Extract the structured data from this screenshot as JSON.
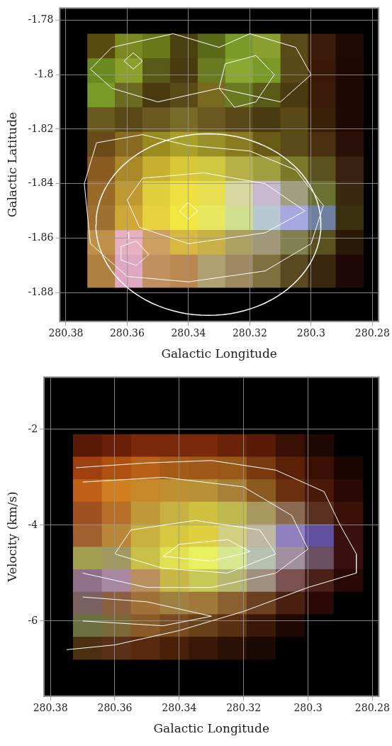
{
  "chart_data": [
    {
      "type": "image",
      "x_label": "Galactic Longitude",
      "y_label": "Galactic Latitude",
      "xlim": [
        280.382,
        280.278
      ],
      "ylim": [
        -1.8905,
        -1.7756
      ],
      "xticks": [
        280.38,
        280.36,
        280.34,
        280.32,
        280.3,
        280.28
      ],
      "yticks": [
        -1.78,
        -1.8,
        -1.82,
        -1.84,
        -1.86,
        -1.88
      ],
      "grid": true,
      "image": {
        "x_edges": [
          280.373,
          280.364,
          280.355,
          280.346,
          280.337,
          280.328,
          280.319,
          280.31,
          280.301,
          280.292,
          280.283
        ],
        "y_edges": [
          -1.785,
          -1.794,
          -1.803,
          -1.812,
          -1.821,
          -1.83,
          -1.839,
          -1.848,
          -1.857,
          -1.866,
          -1.878
        ],
        "colors": [
          [
            "#5a4a10",
            "#7a8a20",
            "#6a7a18",
            "#4a4010",
            "#5a6a18",
            "#7a9a28",
            "#8aa030",
            "#5a4a18",
            "#3a1a08",
            "#200a05"
          ],
          [
            "#6a8a20",
            "#8aa028",
            "#5a5a18",
            "#4a3a10",
            "#6a7a20",
            "#8aa830",
            "#7a9a28",
            "#5a4818",
            "#3a1808",
            "#200805"
          ],
          [
            "#7a9a28",
            "#6a6a20",
            "#4a3a10",
            "#5a4a18",
            "#7a6a20",
            "#6a7a20",
            "#5a5a18",
            "#4a3a10",
            "#3a1a08",
            "#200805"
          ],
          [
            "#6a5a20",
            "#5a4818",
            "#6a5820",
            "#7a6a28",
            "#6a5820",
            "#5a4818",
            "#4a3a12",
            "#5a4818",
            "#3a2008",
            "#200805"
          ],
          [
            "#6a4a18",
            "#8a6a20",
            "#9a8a20",
            "#aaa028",
            "#9a9028",
            "#8a7a20",
            "#6a5a18",
            "#5a4a18",
            "#4a3010",
            "#2a1008"
          ],
          [
            "#8a5a20",
            "#aa8a28",
            "#c8b030",
            "#d8c838",
            "#d0c840",
            "#b8b048",
            "#a0a040",
            "#7a7a28",
            "#5a5020",
            "#3a2010"
          ],
          [
            "#9a6a28",
            "#c09a30",
            "#e0d040",
            "#f0e040",
            "#e8e050",
            "#d8d8a0",
            "#c8b8d0",
            "#a0a080",
            "#6a7030",
            "#3a2810"
          ],
          [
            "#a07030",
            "#d0a838",
            "#e8d040",
            "#f0e840",
            "#e8e860",
            "#d0e090",
            "#b8c8d0",
            "#a8a8e0",
            "#7080a0",
            "#3a3010"
          ],
          [
            "#c09048",
            "#e8b0c0",
            "#d0a060",
            "#d8b840",
            "#c8b048",
            "#b0a060",
            "#a09878",
            "#808050",
            "#5a5020",
            "#2a1808"
          ],
          [
            "#b08040",
            "#e0a8c0",
            "#c09060",
            "#b88850",
            "#b0a070",
            "#a08860",
            "#807040",
            "#5a4820",
            "#3a2810",
            "#200808"
          ]
        ]
      },
      "contours": {
        "color": "#ffffff",
        "lines": [
          [
            [
              280.37,
              -1.825
            ],
            [
              280.355,
              -1.822
            ],
            [
              280.34,
              -1.826
            ],
            [
              280.32,
              -1.828
            ],
            [
              280.305,
              -1.835
            ],
            [
              280.296,
              -1.848
            ],
            [
              280.3,
              -1.862
            ],
            [
              280.315,
              -1.872
            ],
            [
              280.34,
              -1.876
            ],
            [
              280.36,
              -1.874
            ],
            [
              280.372,
              -1.862
            ],
            [
              280.374,
              -1.84
            ],
            [
              280.37,
              -1.825
            ]
          ],
          [
            [
              280.355,
              -1.838
            ],
            [
              280.335,
              -1.836
            ],
            [
              280.315,
              -1.84
            ],
            [
              280.302,
              -1.85
            ],
            [
              280.315,
              -1.858
            ],
            [
              280.34,
              -1.862
            ],
            [
              280.356,
              -1.856
            ],
            [
              280.36,
              -1.846
            ],
            [
              280.355,
              -1.838
            ]
          ],
          [
            [
              280.343,
              -1.85
            ],
            [
              280.34,
              -1.847
            ],
            [
              280.337,
              -1.85
            ],
            [
              280.34,
              -1.853
            ],
            [
              280.343,
              -1.85
            ]
          ],
          [
            [
              280.362,
              -1.863
            ],
            [
              280.357,
              -1.861
            ],
            [
              280.353,
              -1.866
            ],
            [
              280.357,
              -1.87
            ],
            [
              280.362,
              -1.868
            ],
            [
              280.362,
              -1.863
            ]
          ],
          [
            [
              280.365,
              -1.79
            ],
            [
              280.345,
              -1.785
            ],
            [
              280.33,
              -1.79
            ],
            [
              280.32,
              -1.785
            ],
            [
              280.305,
              -1.79
            ],
            [
              280.3,
              -1.8
            ],
            [
              280.31,
              -1.81
            ],
            [
              280.33,
              -1.805
            ],
            [
              280.35,
              -1.81
            ],
            [
              280.365,
              -1.805
            ],
            [
              280.372,
              -1.798
            ],
            [
              280.365,
              -1.79
            ]
          ],
          [
            [
              280.328,
              -1.796
            ],
            [
              280.318,
              -1.793
            ],
            [
              280.312,
              -1.8
            ],
            [
              280.318,
              -1.81
            ],
            [
              280.325,
              -1.812
            ],
            [
              280.33,
              -1.805
            ],
            [
              280.328,
              -1.796
            ]
          ],
          [
            [
              280.361,
              -1.795
            ],
            [
              280.358,
              -1.792
            ],
            [
              280.355,
              -1.795
            ],
            [
              280.358,
              -1.798
            ],
            [
              280.361,
              -1.795
            ]
          ]
        ]
      },
      "ellipse": {
        "color": "#ffffff",
        "center": [
          280.3335,
          -1.855
        ],
        "semi_axes": [
          0.0367,
          0.0333
        ]
      },
      "annotations": [
        {
          "text": "1",
          "x": 280.3595,
          "y": -1.8595
        }
      ]
    },
    {
      "type": "image",
      "x_label": "Galactic Longitude",
      "y_label": "Velocity (km/s)",
      "xlim": [
        280.382,
        280.278
      ],
      "ylim": [
        -7.57,
        -0.91
      ],
      "xticks": [
        280.38,
        280.36,
        280.34,
        280.32,
        280.3,
        280.28
      ],
      "yticks": [
        -2,
        -4,
        -6
      ],
      "grid": true,
      "image": {
        "x_edges": [
          280.373,
          280.364,
          280.355,
          280.346,
          280.337,
          280.328,
          280.319,
          280.31,
          280.301,
          280.292,
          280.283
        ],
        "y_edges": [
          -2.1,
          -2.57,
          -3.04,
          -3.51,
          -3.98,
          -4.45,
          -4.92,
          -5.39,
          -5.86,
          -6.33,
          -6.8
        ],
        "colors": [
          [
            "#5a1a08",
            "#6a2008",
            "#7a2a0a",
            "#7a2a0a",
            "#7a2a0a",
            "#6a2208",
            "#5a1a08",
            "#3a1005",
            "#200805",
            "#000000"
          ],
          [
            "#a04010",
            "#b05010",
            "#b86018",
            "#a85a18",
            "#a05818",
            "#985818",
            "#7a3a10",
            "#5a2008",
            "#3a1005",
            "#1a0503"
          ],
          [
            "#c06018",
            "#d08020",
            "#c88828",
            "#c09030",
            "#b89038",
            "#a88038",
            "#8a5a20",
            "#6a3010",
            "#4a1808",
            "#2a0805"
          ],
          [
            "#a05020",
            "#b87028",
            "#c09838",
            "#c8b040",
            "#d0c040",
            "#c0b850",
            "#a89860",
            "#8a6a50",
            "#5a3020",
            "#3a1008"
          ],
          [
            "#a06030",
            "#b88838",
            "#c8b040",
            "#d8c840",
            "#e0d040",
            "#d0d080",
            "#c0b8a0",
            "#9080c0",
            "#6050a0",
            "#3a1010"
          ],
          [
            "#a0a050",
            "#a09860",
            "#c8c048",
            "#e0e050",
            "#e8f060",
            "#d8e890",
            "#b8c0b0",
            "#a090a0",
            "#6a5060",
            "#3a1010"
          ],
          [
            "#907088",
            "#a888a0",
            "#b89060",
            "#c8b848",
            "#c8c858",
            "#b8b870",
            "#a09080",
            "#7a5050",
            "#4a2018",
            "#2a0805"
          ],
          [
            "#7a6060",
            "#8a6040",
            "#a07038",
            "#a08040",
            "#a07838",
            "#8a6030",
            "#6a4020",
            "#4a2010",
            "#2a0805",
            "#000000"
          ],
          [
            "#6a7040",
            "#7a6838",
            "#8a5a28",
            "#7a4a20",
            "#6a4018",
            "#5a3010",
            "#3a1808",
            "#200805",
            "#000000",
            "#000000"
          ],
          [
            "#4a3010",
            "#5a3018",
            "#5a2a10",
            "#4a2008",
            "#3a1808",
            "#2a1005",
            "#1a0803",
            "#000000",
            "#000000",
            "#000000"
          ]
        ]
      },
      "contours": {
        "color": "#ffffff",
        "lines": [
          [
            [
              280.372,
              -2.8
            ],
            [
              280.35,
              -2.7
            ],
            [
              280.33,
              -2.65
            ],
            [
              280.31,
              -2.85
            ],
            [
              280.295,
              -3.3
            ],
            [
              280.29,
              -4
            ],
            [
              280.285,
              -4.6
            ],
            [
              280.285,
              -5
            ],
            [
              280.3,
              -5.3
            ],
            [
              280.32,
              -5.8
            ],
            [
              280.34,
              -6.2
            ],
            [
              280.36,
              -6.5
            ],
            [
              280.375,
              -6.6
            ]
          ],
          [
            [
              280.37,
              -3.1
            ],
            [
              280.345,
              -3
            ],
            [
              280.32,
              -3.2
            ],
            [
              280.305,
              -3.8
            ],
            [
              280.3,
              -4.5
            ],
            [
              280.31,
              -5
            ],
            [
              280.33,
              -5.3
            ],
            [
              280.35,
              -5.3
            ],
            [
              280.37,
              -5
            ]
          ],
          [
            [
              280.355,
              -4.1
            ],
            [
              280.335,
              -3.9
            ],
            [
              280.315,
              -4.1
            ],
            [
              280.31,
              -4.6
            ],
            [
              280.325,
              -5
            ],
            [
              280.345,
              -4.9
            ],
            [
              280.36,
              -4.6
            ],
            [
              280.355,
              -4.1
            ]
          ],
          [
            [
              280.34,
              -4.4
            ],
            [
              280.325,
              -4.3
            ],
            [
              280.318,
              -4.55
            ],
            [
              280.33,
              -4.75
            ],
            [
              280.345,
              -4.65
            ],
            [
              280.34,
              -4.4
            ]
          ],
          [
            [
              280.37,
              -5.5
            ],
            [
              280.35,
              -5.6
            ],
            [
              280.33,
              -5.9
            ],
            [
              280.345,
              -6.1
            ],
            [
              280.37,
              -6
            ]
          ]
        ]
      }
    }
  ]
}
